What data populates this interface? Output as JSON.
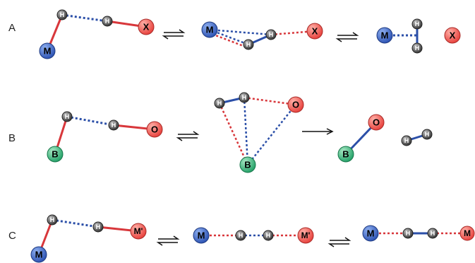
{
  "colors": {
    "metal": "#2f55b5",
    "metal_light": "#8fb0f0",
    "halide": "#e8443f",
    "halide_light": "#ffb0a8",
    "boron": "#27a36a",
    "boron_light": "#a8e8c4",
    "hydrogen": "#3a3a3a",
    "hydrogen_light": "#bdbdbd",
    "bond_red": "#d8373b",
    "bond_blue": "#2b4fa8"
  },
  "atom_labels": {
    "metal": "M",
    "hydrogen": "H",
    "halide": "X",
    "boron": "B",
    "oxygen": "O",
    "metal_prime": "M'"
  },
  "rows": [
    {
      "label": "A"
    },
    {
      "label": "B"
    },
    {
      "label": "C"
    }
  ]
}
